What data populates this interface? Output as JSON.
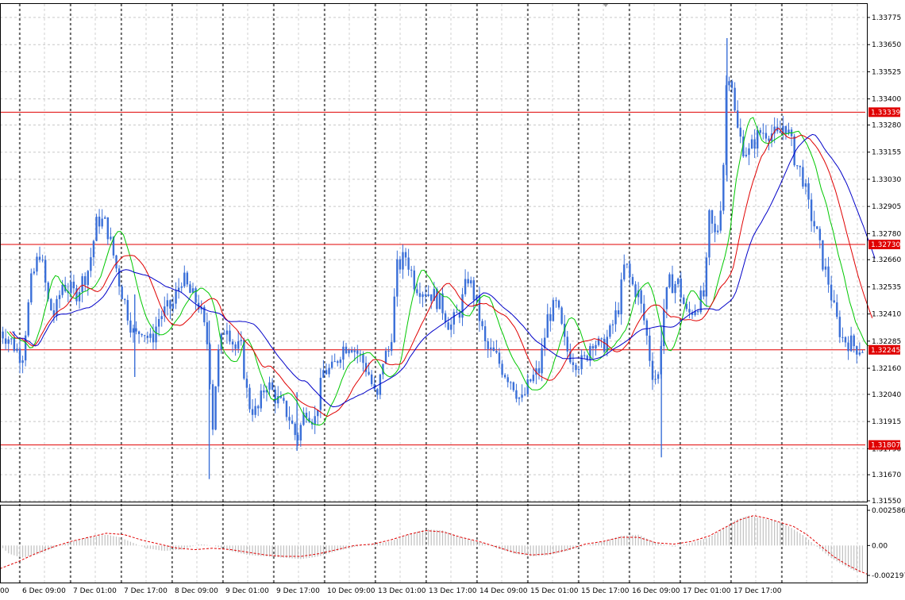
{
  "chart_data": [
    {
      "type": "candlestick",
      "grid": true,
      "ylim": [
        1.3155,
        1.33775
      ],
      "price_ticks": [
        "1.33775",
        "1.33650",
        "1.33525",
        "1.33400",
        "1.33280",
        "1.33155",
        "1.33030",
        "1.32905",
        "1.32780",
        "1.32660",
        "1.32535",
        "1.32410",
        "1.32285",
        "1.32160",
        "1.32040",
        "1.31915",
        "1.31790",
        "1.31670",
        "1.31550"
      ],
      "x_labels": [
        "6 Dec 09:00",
        "7 Dec 01:00",
        "7 Dec 17:00",
        "8 Dec 09:00",
        "9 Dec 01:00",
        "9 Dec 17:00",
        "10 Dec 09:00",
        "13 Dec 01:00",
        "13 Dec 17:00",
        "14 Dec 09:00",
        "15 Dec 01:00",
        "15 Dec 17:00",
        "16 Dec 09:00",
        "17 Dec 01:00",
        "17 Dec 17:00"
      ],
      "x_label_first": "00",
      "levels": [
        {
          "value": 1.33339,
          "label": "1.33339"
        },
        {
          "value": 1.3273,
          "label": "1.32730"
        },
        {
          "value": 1.32245,
          "label": "1.32245"
        },
        {
          "value": 1.31807,
          "label": "1.31807"
        }
      ],
      "price_path": [
        [
          0,
          1.3233
        ],
        [
          10,
          1.323
        ],
        [
          25,
          1.3221
        ],
        [
          35,
          1.3255
        ],
        [
          45,
          1.327
        ],
        [
          55,
          1.3245
        ],
        [
          62,
          1.324
        ],
        [
          70,
          1.3255
        ],
        [
          85,
          1.325
        ],
        [
          100,
          1.3262
        ],
        [
          110,
          1.3285
        ],
        [
          120,
          1.3282
        ],
        [
          128,
          1.3268
        ],
        [
          135,
          1.3255
        ],
        [
          145,
          1.324
        ],
        [
          152,
          1.323
        ],
        [
          160,
          1.3235
        ],
        [
          170,
          1.3228
        ],
        [
          180,
          1.324
        ],
        [
          195,
          1.3245
        ],
        [
          205,
          1.3258
        ],
        [
          215,
          1.325
        ],
        [
          225,
          1.3245
        ],
        [
          235,
          1.3225
        ],
        [
          240,
          1.319
        ],
        [
          245,
          1.322
        ],
        [
          255,
          1.3238
        ],
        [
          265,
          1.3225
        ],
        [
          272,
          1.3225
        ],
        [
          280,
          1.32
        ],
        [
          290,
          1.3195
        ],
        [
          300,
          1.321
        ],
        [
          315,
          1.32
        ],
        [
          325,
          1.3195
        ],
        [
          335,
          1.3183
        ],
        [
          345,
          1.3198
        ],
        [
          355,
          1.3192
        ],
        [
          365,
          1.3215
        ],
        [
          375,
          1.3215
        ],
        [
          385,
          1.3225
        ],
        [
          395,
          1.3228
        ],
        [
          405,
          1.3222
        ],
        [
          415,
          1.3215
        ],
        [
          425,
          1.32
        ],
        [
          432,
          1.322
        ],
        [
          440,
          1.3225
        ],
        [
          448,
          1.3262
        ],
        [
          458,
          1.3268
        ],
        [
          468,
          1.3255
        ],
        [
          478,
          1.3252
        ],
        [
          488,
          1.325
        ],
        [
          498,
          1.3245
        ],
        [
          508,
          1.3235
        ],
        [
          518,
          1.3242
        ],
        [
          528,
          1.3258
        ],
        [
          538,
          1.3245
        ],
        [
          548,
          1.3225
        ],
        [
          558,
          1.3222
        ],
        [
          568,
          1.3215
        ],
        [
          578,
          1.321
        ],
        [
          588,
          1.32
        ],
        [
          598,
          1.321
        ],
        [
          608,
          1.3215
        ],
        [
          618,
          1.324
        ],
        [
          628,
          1.3245
        ],
        [
          638,
          1.3225
        ],
        [
          648,
          1.322
        ],
        [
          658,
          1.3218
        ],
        [
          668,
          1.323
        ],
        [
          678,
          1.3225
        ],
        [
          688,
          1.3232
        ],
        [
          698,
          1.3245
        ],
        [
          705,
          1.3265
        ],
        [
          712,
          1.3255
        ],
        [
          720,
          1.325
        ],
        [
          728,
          1.3235
        ],
        [
          735,
          1.3215
        ],
        [
          742,
          1.321
        ],
        [
          748,
          1.3242
        ],
        [
          755,
          1.3255
        ],
        [
          765,
          1.3255
        ],
        [
          775,
          1.324
        ],
        [
          785,
          1.3245
        ],
        [
          795,
          1.325
        ],
        [
          800,
          1.3285
        ],
        [
          808,
          1.3275
        ],
        [
          815,
          1.33
        ],
        [
          820,
          1.3355
        ],
        [
          825,
          1.335
        ],
        [
          830,
          1.3328
        ],
        [
          838,
          1.3318
        ],
        [
          845,
          1.3315
        ],
        [
          850,
          1.332
        ],
        [
          858,
          1.3325
        ],
        [
          868,
          1.3325
        ],
        [
          878,
          1.3322
        ],
        [
          885,
          1.333
        ],
        [
          892,
          1.332
        ],
        [
          898,
          1.331
        ],
        [
          905,
          1.3305
        ],
        [
          912,
          1.329
        ],
        [
          920,
          1.328
        ],
        [
          928,
          1.3265
        ],
        [
          935,
          1.3255
        ],
        [
          942,
          1.324
        ],
        [
          950,
          1.323
        ],
        [
          958,
          1.3228
        ],
        [
          965,
          1.3226
        ],
        [
          975,
          1.3225
        ]
      ],
      "ma_series": [
        {
          "color": "#00c800"
        },
        {
          "color": "#e00000"
        },
        {
          "color": "#0000c8"
        }
      ],
      "bar_colors": {
        "bull": "#3a6fd8",
        "bear": "#3a6fd8",
        "level_line": "#e00000",
        "level_label_bg": "#e00000"
      }
    },
    {
      "type": "oscillator",
      "ylim": [
        -0.002197,
        0.002586
      ],
      "ticks": [
        "0.002586",
        "0.00",
        "-0.002197"
      ],
      "histogram_path": [
        [
          0,
          0.0
        ],
        [
          10,
          -0.0006
        ],
        [
          25,
          -0.0009
        ],
        [
          40,
          -0.0007
        ],
        [
          60,
          -0.0002
        ],
        [
          80,
          0.0003
        ],
        [
          100,
          0.0006
        ],
        [
          120,
          0.0008
        ],
        [
          135,
          0.0006
        ],
        [
          150,
          0.0002
        ],
        [
          165,
          -0.0002
        ],
        [
          185,
          -0.0004
        ],
        [
          205,
          -0.0003
        ],
        [
          225,
          0.0001
        ],
        [
          240,
          0.0
        ],
        [
          260,
          -0.0004
        ],
        [
          280,
          -0.0007
        ],
        [
          300,
          -0.0008
        ],
        [
          320,
          -0.0009
        ],
        [
          340,
          -0.001
        ],
        [
          360,
          -0.0008
        ],
        [
          380,
          -0.0004
        ],
        [
          400,
          -0.0001
        ],
        [
          420,
          0.0001
        ],
        [
          440,
          0.0003
        ],
        [
          460,
          0.0008
        ],
        [
          480,
          0.0012
        ],
        [
          500,
          0.0011
        ],
        [
          520,
          0.0006
        ],
        [
          540,
          0.0003
        ],
        [
          560,
          -0.0002
        ],
        [
          580,
          -0.0006
        ],
        [
          600,
          -0.0008
        ],
        [
          620,
          -0.0007
        ],
        [
          640,
          -0.0004
        ],
        [
          660,
          0.0
        ],
        [
          680,
          0.0003
        ],
        [
          700,
          0.0007
        ],
        [
          720,
          0.0008
        ],
        [
          740,
          0.0002
        ],
        [
          760,
          -0.0001
        ],
        [
          780,
          0.0002
        ],
        [
          800,
          0.0006
        ],
        [
          815,
          0.0012
        ],
        [
          830,
          0.0019
        ],
        [
          845,
          0.0022
        ],
        [
          860,
          0.002
        ],
        [
          875,
          0.0018
        ],
        [
          890,
          0.0014
        ],
        [
          905,
          0.0008
        ],
        [
          920,
          0.0
        ],
        [
          935,
          -0.0008
        ],
        [
          950,
          -0.0014
        ],
        [
          965,
          -0.0019
        ],
        [
          975,
          -0.002
        ]
      ],
      "signal_path": [
        [
          0,
          -0.0017
        ],
        [
          20,
          -0.0012
        ],
        [
          40,
          -0.0006
        ],
        [
          60,
          -0.0001
        ],
        [
          80,
          0.0003
        ],
        [
          100,
          0.0006
        ],
        [
          120,
          0.0009
        ],
        [
          140,
          0.0008
        ],
        [
          160,
          0.0004
        ],
        [
          180,
          0.0001
        ],
        [
          200,
          -0.0002
        ],
        [
          220,
          -0.0003
        ],
        [
          240,
          -0.0002
        ],
        [
          260,
          -0.0003
        ],
        [
          280,
          -0.0005
        ],
        [
          300,
          -0.0007
        ],
        [
          320,
          -0.0008
        ],
        [
          340,
          -0.0008
        ],
        [
          360,
          -0.0006
        ],
        [
          380,
          -0.0003
        ],
        [
          400,
          0.0
        ],
        [
          420,
          0.0001
        ],
        [
          440,
          0.0004
        ],
        [
          460,
          0.0008
        ],
        [
          480,
          0.0011
        ],
        [
          500,
          0.001
        ],
        [
          520,
          0.0006
        ],
        [
          540,
          0.0003
        ],
        [
          560,
          -0.0001
        ],
        [
          580,
          -0.0005
        ],
        [
          600,
          -0.0007
        ],
        [
          620,
          -0.0006
        ],
        [
          640,
          -0.0003
        ],
        [
          660,
          0.0001
        ],
        [
          680,
          0.0003
        ],
        [
          700,
          0.0006
        ],
        [
          720,
          0.0006
        ],
        [
          740,
          0.0002
        ],
        [
          760,
          0.0001
        ],
        [
          780,
          0.0003
        ],
        [
          800,
          0.0007
        ],
        [
          820,
          0.0014
        ],
        [
          835,
          0.0019
        ],
        [
          850,
          0.0022
        ],
        [
          865,
          0.002
        ],
        [
          880,
          0.0017
        ],
        [
          895,
          0.0014
        ],
        [
          910,
          0.0008
        ],
        [
          925,
          0.0
        ],
        [
          940,
          -0.0008
        ],
        [
          955,
          -0.0014
        ],
        [
          970,
          -0.0019
        ],
        [
          978,
          -0.0021
        ]
      ],
      "colors": {
        "histogram": "#c0c0c0",
        "signal": "#e00000"
      }
    }
  ]
}
